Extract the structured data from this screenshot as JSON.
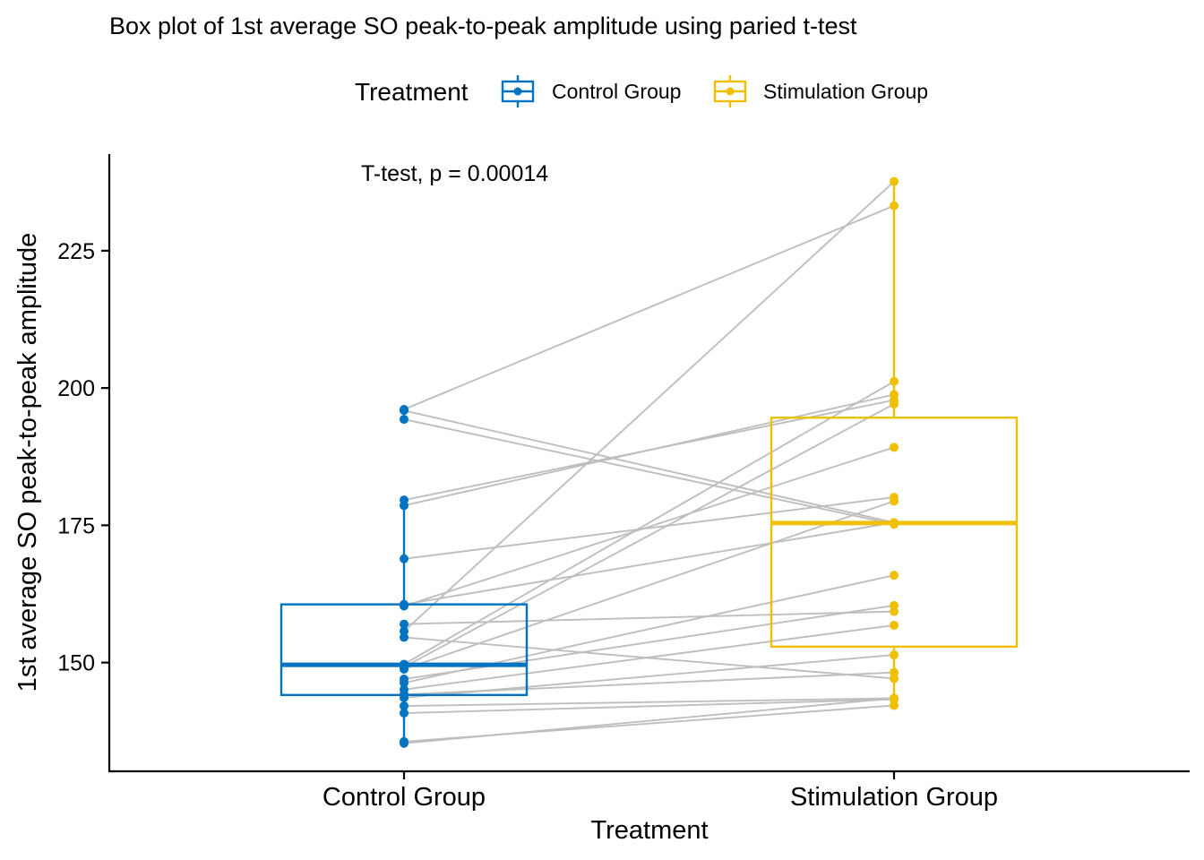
{
  "chart_data": {
    "type": "box",
    "title": "Box plot of 1st average SO peak-to-peak amplitude using paried t-test",
    "xlabel": "Treatment",
    "ylabel": "1st average SO peak-to-peak amplitude",
    "annotation": "T-test, p = 0.00014",
    "legend": {
      "title": "Treatment",
      "position": "top",
      "entries": [
        "Control Group",
        "Stimulation Group"
      ]
    },
    "categories": [
      "Control Group",
      "Stimulation Group"
    ],
    "colors": {
      "Control Group": "#0073C2",
      "Stimulation Group": "#EFC000",
      "pair_line": "#BEBEBE"
    },
    "ylim": [
      130.2,
      242.6
    ],
    "yticks": [
      150,
      175,
      200,
      225
    ],
    "grid": false,
    "boxes": [
      {
        "name": "Control Group",
        "q1": 144.1,
        "median": 149.6,
        "q3": 160.6,
        "whisker_low": 135.3,
        "whisker_high": 179.6
      },
      {
        "name": "Stimulation Group",
        "q1": 152.9,
        "median": 175.4,
        "q3": 194.6,
        "whisker_low": 142.2,
        "whisker_high": 237.6
      }
    ],
    "pairs": [
      [
        196.1,
        233.2
      ],
      [
        195.9,
        175.5
      ],
      [
        194.3,
        175.2
      ],
      [
        179.6,
        197.8
      ],
      [
        178.6,
        198.8
      ],
      [
        168.9,
        180.1
      ],
      [
        160.6,
        175.5
      ],
      [
        160.3,
        189.2
      ],
      [
        157.0,
        159.3
      ],
      [
        155.7,
        237.6
      ],
      [
        154.6,
        147.1
      ],
      [
        149.7,
        201.2
      ],
      [
        149.2,
        197.1
      ],
      [
        148.8,
        179.4
      ],
      [
        147.0,
        160.4
      ],
      [
        146.3,
        165.9
      ],
      [
        145.1,
        156.8
      ],
      [
        144.2,
        148.2
      ],
      [
        143.6,
        151.4
      ],
      [
        142.1,
        143.5
      ],
      [
        140.8,
        143.3
      ],
      [
        135.6,
        142.2
      ],
      [
        135.3,
        143.5
      ]
    ]
  }
}
